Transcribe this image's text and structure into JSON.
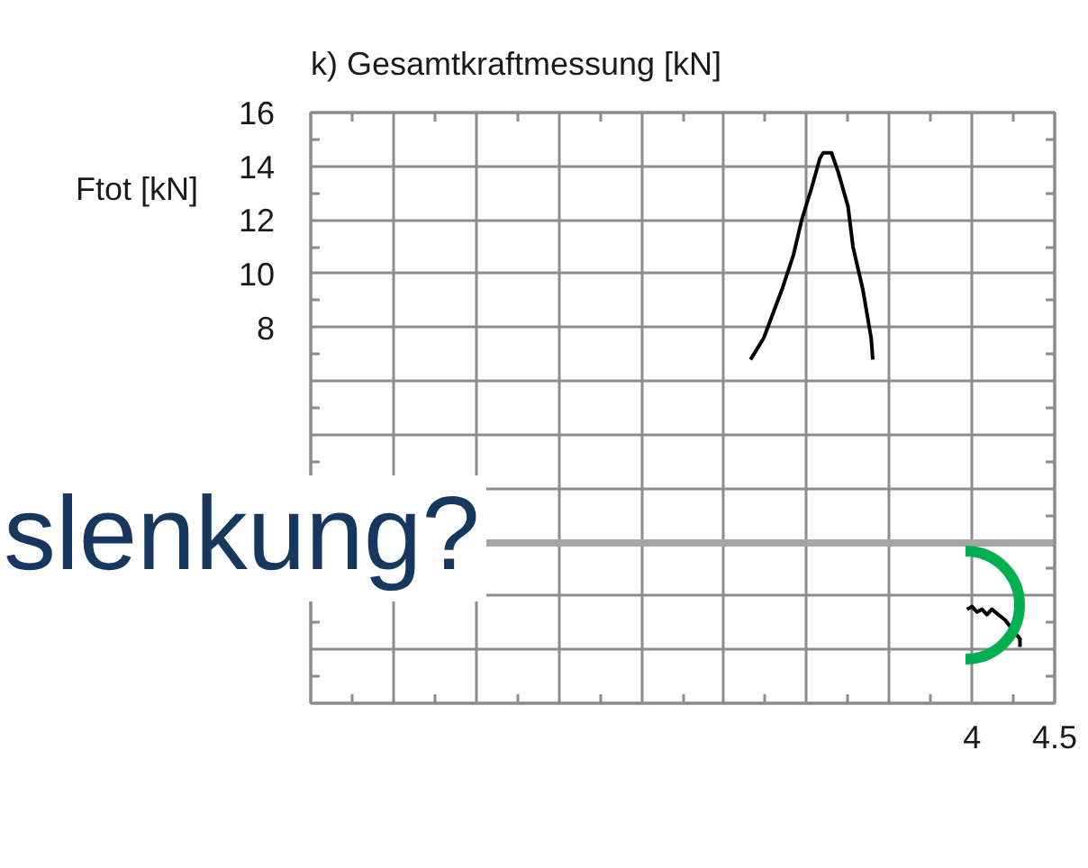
{
  "chart_data": {
    "type": "line",
    "title": "k) Gesamtkraftmessung [kN]",
    "ylabel": "Ftot [kN]",
    "annotations": [
      "slenkung?"
    ],
    "x": [
      2.66,
      2.74,
      2.85,
      2.92,
      2.97,
      3.03,
      3.08,
      3.1,
      3.15,
      3.19,
      3.25,
      3.28,
      3.34,
      3.39,
      3.4,
      3.7,
      3.97,
      4.0,
      4.03,
      4.06,
      4.09,
      4.12,
      4.16,
      4.2,
      4.25,
      4.29,
      4.29
    ],
    "series": [
      {
        "color": "#000000",
        "values": [
          6.8,
          7.6,
          9.4,
          10.7,
          12.0,
          13.2,
          14.3,
          14.5,
          14.5,
          13.8,
          12.5,
          11.0,
          9.4,
          7.6,
          6.8,
          null,
          -2.5,
          -2.4,
          -2.6,
          -2.5,
          -2.7,
          -2.5,
          -2.7,
          -2.9,
          -3.3,
          -3.6,
          -3.9
        ]
      }
    ],
    "xlim": [
      0,
      4.5
    ],
    "ylim": [
      -6,
      16
    ],
    "xticks": [
      {
        "value": 0,
        "label": null
      },
      {
        "value": 0.5,
        "label": null
      },
      {
        "value": 1,
        "label": null
      },
      {
        "value": 1.5,
        "label": null
      },
      {
        "value": 2,
        "label": null
      },
      {
        "value": 2.5,
        "label": null
      },
      {
        "value": 3,
        "label": null
      },
      {
        "value": 3.5,
        "label": null
      },
      4,
      4.5
    ],
    "yticks": [
      {
        "value": -6,
        "label": null
      },
      {
        "value": -4,
        "label": null
      },
      {
        "value": -2,
        "label": null
      },
      {
        "value": 0,
        "label": null
      },
      {
        "value": 2,
        "label": null
      },
      {
        "value": 4,
        "label": null
      },
      {
        "value": 6,
        "label": null
      },
      8,
      10,
      12,
      14,
      16
    ],
    "grid": true,
    "ref_lines": [
      {
        "axis": "y",
        "value": 0,
        "color": "#a6a6a6"
      }
    ]
  }
}
